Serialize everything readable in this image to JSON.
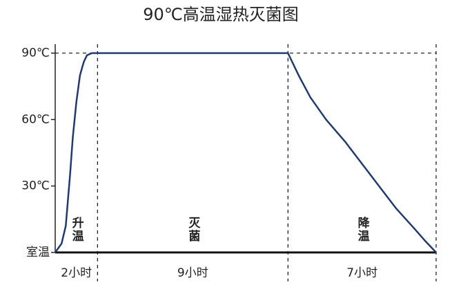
{
  "chart_data": {
    "type": "line",
    "title": "90℃高温湿热灭菌图",
    "x": [
      0,
      0.3,
      0.5,
      0.7,
      0.83,
      1.0,
      1.17,
      1.35,
      1.5,
      1.73,
      11,
      11.5,
      12.06,
      12.8,
      13.7,
      14.5,
      15.3,
      16.1,
      16.95,
      17.5,
      18
    ],
    "values": [
      0,
      4,
      12,
      35,
      52,
      68,
      80,
      86,
      89,
      90,
      90,
      80,
      70,
      60,
      50,
      40,
      30,
      20,
      11,
      5,
      0
    ],
    "color": "#1f3a6e",
    "xlim": [
      0,
      18
    ],
    "ylim": [
      0,
      90
    ],
    "yticks": [
      {
        "value": 0,
        "label": "室温"
      },
      {
        "value": 30,
        "label": "30℃"
      },
      {
        "value": 60,
        "label": "60℃"
      },
      {
        "value": 90,
        "label": "90℃"
      }
    ],
    "phases": [
      {
        "name": "升温",
        "hours": 2,
        "label": "2小时"
      },
      {
        "name": "灭菌",
        "hours": 9,
        "label": "9小时"
      },
      {
        "name": "降温",
        "hours": 7,
        "label": "7小时"
      }
    ]
  }
}
